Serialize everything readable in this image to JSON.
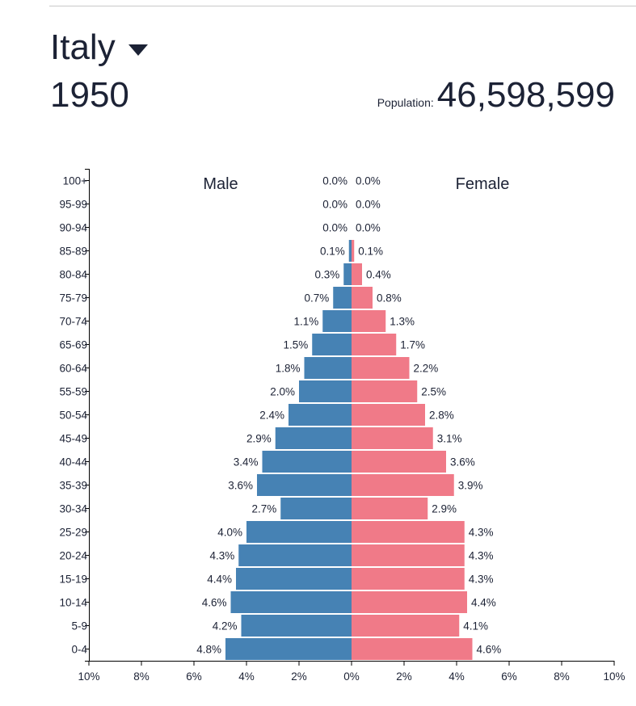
{
  "header": {
    "country": "Italy",
    "year": "1950",
    "population_label": "Population:",
    "population_value": "46,598,599"
  },
  "colors": {
    "male": "#4682b4",
    "female": "#f07a88",
    "text": "#1c2235"
  },
  "chart_data": {
    "type": "bar",
    "orientation": "horizontal-population-pyramid",
    "categories": [
      "0-4",
      "5-9",
      "10-14",
      "15-19",
      "20-24",
      "25-29",
      "30-34",
      "35-39",
      "40-44",
      "45-49",
      "50-54",
      "55-59",
      "60-64",
      "65-69",
      "70-74",
      "75-79",
      "80-84",
      "85-89",
      "90-94",
      "95-99",
      "100+"
    ],
    "series": [
      {
        "name": "Male",
        "values": [
          4.8,
          4.2,
          4.6,
          4.4,
          4.3,
          4.0,
          2.7,
          3.6,
          3.4,
          2.9,
          2.4,
          2.0,
          1.8,
          1.5,
          1.1,
          0.7,
          0.3,
          0.1,
          0.0,
          0.0,
          0.0
        ],
        "labels": [
          "4.8%",
          "4.2%",
          "4.6%",
          "4.4%",
          "4.3%",
          "4.0%",
          "2.7%",
          "3.6%",
          "3.4%",
          "2.9%",
          "2.4%",
          "2.0%",
          "1.8%",
          "1.5%",
          "1.1%",
          "0.7%",
          "0.3%",
          "0.1%",
          "0.0%",
          "0.0%",
          "0.0%"
        ]
      },
      {
        "name": "Female",
        "values": [
          4.6,
          4.1,
          4.4,
          4.3,
          4.3,
          4.3,
          2.9,
          3.9,
          3.6,
          3.1,
          2.8,
          2.5,
          2.2,
          1.7,
          1.3,
          0.8,
          0.4,
          0.1,
          0.0,
          0.0,
          0.0
        ],
        "labels": [
          "4.6%",
          "4.1%",
          "4.4%",
          "4.3%",
          "4.3%",
          "4.3%",
          "2.9%",
          "3.9%",
          "3.6%",
          "3.1%",
          "2.8%",
          "2.5%",
          "2.2%",
          "1.7%",
          "1.3%",
          "0.8%",
          "0.4%",
          "0.1%",
          "0.0%",
          "0.0%",
          "0.0%"
        ]
      }
    ],
    "x_ticks": [
      "10%",
      "8%",
      "6%",
      "4%",
      "2%",
      "0%",
      "2%",
      "4%",
      "6%",
      "8%",
      "10%"
    ],
    "xlim": [
      -10,
      10
    ],
    "grid": false
  }
}
